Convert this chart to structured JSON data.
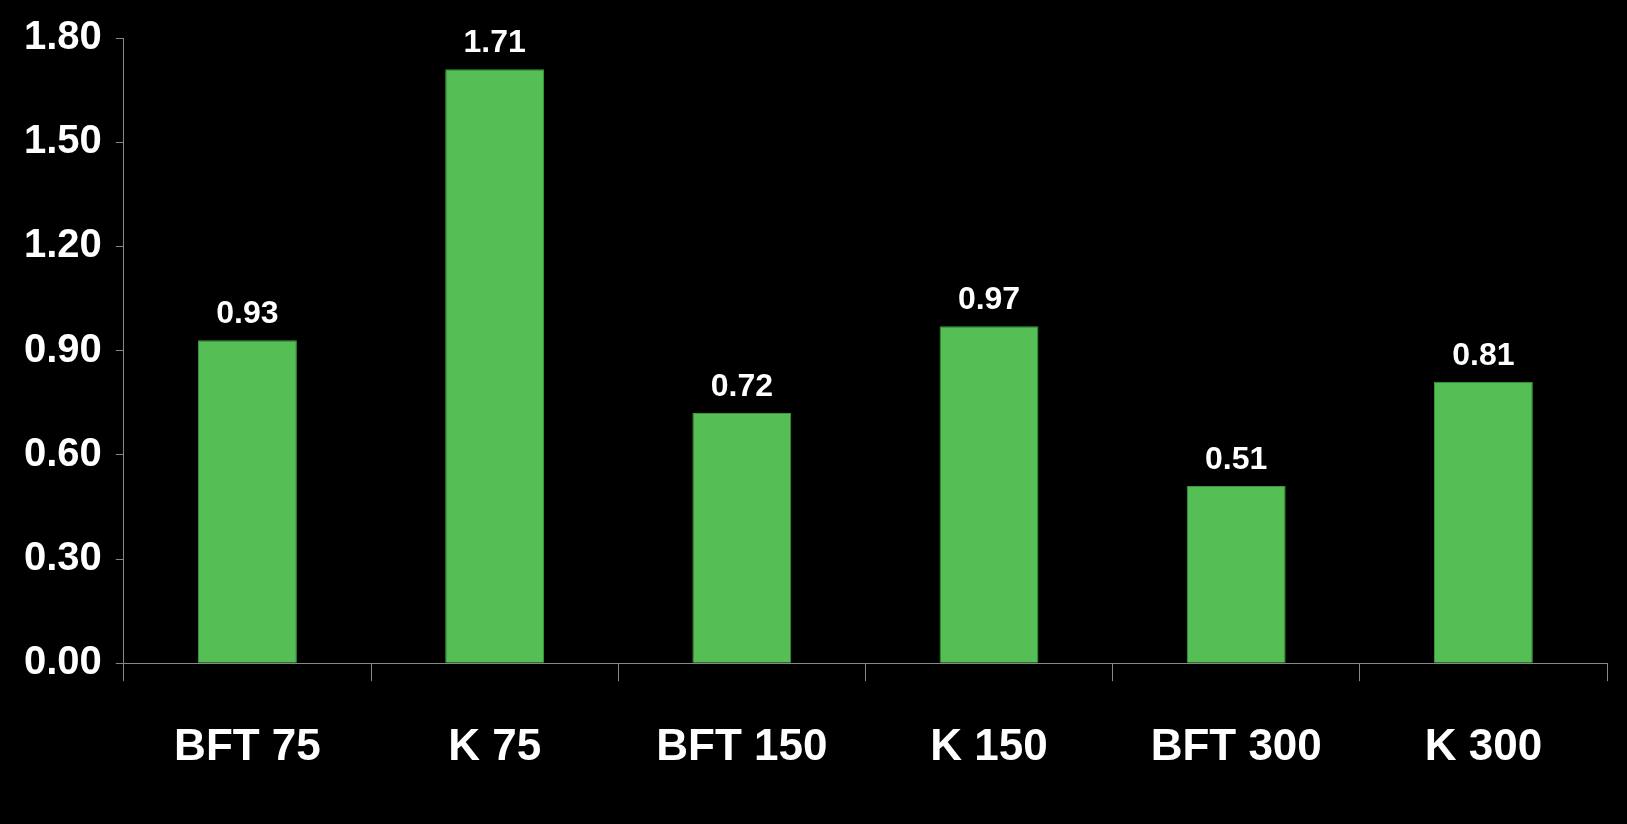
{
  "chart_data": {
    "type": "bar",
    "categories": [
      "BFT 75",
      "K 75",
      "BFT 150",
      "K 150",
      "BFT 300",
      "K 300"
    ],
    "values": [
      0.93,
      1.71,
      0.72,
      0.97,
      0.51,
      0.81
    ],
    "color": "#55bf55",
    "ylim": [
      0,
      1.8
    ],
    "yticks": [
      {
        "value": 0,
        "label": "0.00"
      },
      {
        "value": 0.3,
        "label": "0.30"
      },
      {
        "value": 0.6,
        "label": "0.60"
      },
      {
        "value": 0.9,
        "label": "0.90"
      },
      {
        "value": 1.2,
        "label": "1.20"
      },
      {
        "value": 1.5,
        "label": "1.50"
      },
      {
        "value": 1.8,
        "label": "1.80"
      }
    ],
    "grid": false,
    "legend": false,
    "data_labels": true
  }
}
